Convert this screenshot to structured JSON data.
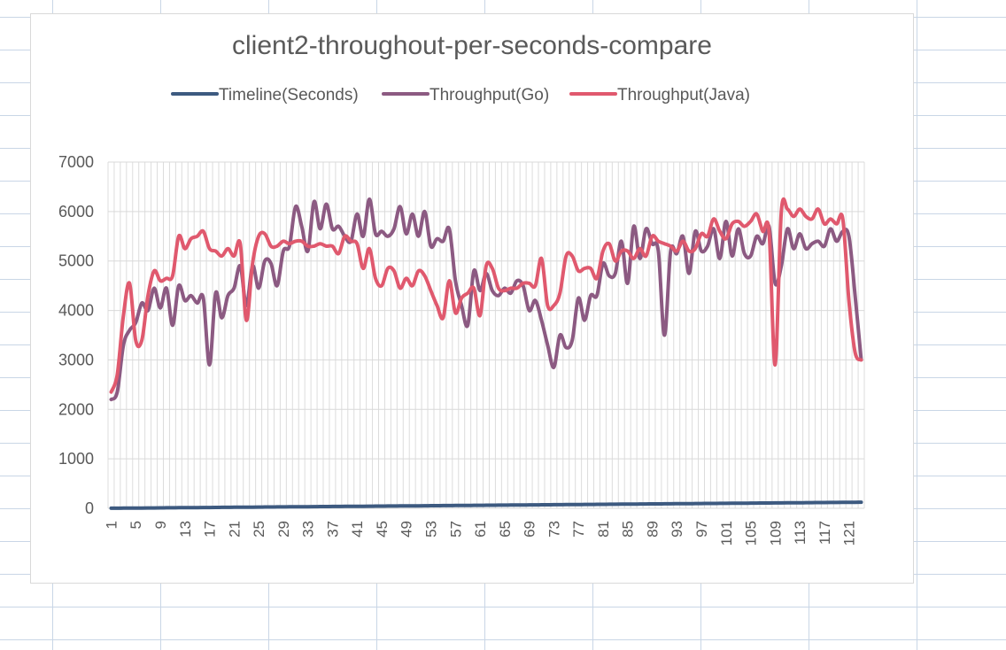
{
  "chart_data": {
    "type": "line",
    "title": "client2-throughout-per-seconds-compare",
    "xlabel": "",
    "ylabel": "",
    "ylim": [
      0,
      7000
    ],
    "yticks": [
      "0",
      "1000",
      "2000",
      "3000",
      "4000",
      "5000",
      "6000",
      "7000"
    ],
    "x": [
      1,
      2,
      3,
      4,
      5,
      6,
      7,
      8,
      9,
      10,
      11,
      12,
      13,
      14,
      15,
      16,
      17,
      18,
      19,
      20,
      21,
      22,
      23,
      24,
      25,
      26,
      27,
      28,
      29,
      30,
      31,
      32,
      33,
      34,
      35,
      36,
      37,
      38,
      39,
      40,
      41,
      42,
      43,
      44,
      45,
      46,
      47,
      48,
      49,
      50,
      51,
      52,
      53,
      54,
      55,
      56,
      57,
      58,
      59,
      60,
      61,
      62,
      63,
      64,
      65,
      66,
      67,
      68,
      69,
      70,
      71,
      72,
      73,
      74,
      75,
      76,
      77,
      78,
      79,
      80,
      81,
      82,
      83,
      84,
      85,
      86,
      87,
      88,
      89,
      90,
      91,
      92,
      93,
      94,
      95,
      96,
      97,
      98,
      99,
      100,
      101,
      102,
      103,
      104,
      105,
      106,
      107,
      108,
      109,
      110,
      111,
      112,
      113,
      114,
      115,
      116,
      117,
      118,
      119,
      120,
      121,
      122,
      123
    ],
    "xtick_labels": [
      "1",
      "5",
      "9",
      "13",
      "17",
      "21",
      "25",
      "29",
      "33",
      "37",
      "41",
      "45",
      "49",
      "53",
      "57",
      "61",
      "65",
      "69",
      "73",
      "77",
      "81",
      "85",
      "89",
      "93",
      "97",
      "101",
      "105",
      "109",
      "113",
      "117",
      "121"
    ],
    "grid": true,
    "legend_position": "top",
    "series": [
      {
        "name": "Timeline(Seconds)",
        "color": "#3d5a80",
        "values": [
          1,
          2,
          3,
          4,
          5,
          6,
          7,
          8,
          9,
          10,
          11,
          12,
          13,
          14,
          15,
          16,
          17,
          18,
          19,
          20,
          21,
          22,
          23,
          24,
          25,
          26,
          27,
          28,
          29,
          30,
          31,
          32,
          33,
          34,
          35,
          36,
          37,
          38,
          39,
          40,
          41,
          42,
          43,
          44,
          45,
          46,
          47,
          48,
          49,
          50,
          51,
          52,
          53,
          54,
          55,
          56,
          57,
          58,
          59,
          60,
          61,
          62,
          63,
          64,
          65,
          66,
          67,
          68,
          69,
          70,
          71,
          72,
          73,
          74,
          75,
          76,
          77,
          78,
          79,
          80,
          81,
          82,
          83,
          84,
          85,
          86,
          87,
          88,
          89,
          90,
          91,
          92,
          93,
          94,
          95,
          96,
          97,
          98,
          99,
          100,
          101,
          102,
          103,
          104,
          105,
          106,
          107,
          108,
          109,
          110,
          111,
          112,
          113,
          114,
          115,
          116,
          117,
          118,
          119,
          120,
          121,
          122,
          123
        ]
      },
      {
        "name": "Throughput(Go)",
        "color": "#8c5a82",
        "values": [
          2200,
          2350,
          3300,
          3600,
          3750,
          4150,
          4000,
          4450,
          4050,
          4450,
          3700,
          4500,
          4200,
          4300,
          4150,
          4250,
          2900,
          4350,
          3850,
          4300,
          4450,
          4900,
          4100,
          4900,
          4450,
          5000,
          4950,
          4500,
          5200,
          5300,
          6100,
          5700,
          5200,
          6200,
          5650,
          6150,
          5650,
          5700,
          5500,
          5400,
          5950,
          5500,
          6250,
          5550,
          5600,
          5500,
          5650,
          6100,
          5550,
          5950,
          5500,
          6000,
          5300,
          5450,
          5400,
          5650,
          4600,
          4100,
          3700,
          4800,
          4400,
          4750,
          4400,
          4300,
          4450,
          4350,
          4600,
          4500,
          4000,
          4200,
          3800,
          3300,
          2850,
          3500,
          3250,
          3400,
          4250,
          3800,
          4300,
          4300,
          4950,
          4700,
          4750,
          5400,
          4550,
          5700,
          5050,
          5650,
          5350,
          5200,
          3500,
          5200,
          5150,
          5500,
          4750,
          5600,
          5200,
          5300,
          5650,
          5050,
          5800,
          5100,
          5650,
          5150,
          5100,
          5500,
          5350,
          5700,
          4550,
          4900,
          5650,
          5250,
          5550,
          5250,
          5350,
          5400,
          5300,
          5650,
          5400,
          5600,
          5500,
          4300,
          3000
        ]
      },
      {
        "name": "Throughput(Java)",
        "color": "#e0596e",
        "values": [
          2350,
          2700,
          3900,
          4550,
          3400,
          3400,
          4300,
          4800,
          4600,
          4650,
          4700,
          5500,
          5250,
          5450,
          5500,
          5600,
          5250,
          5200,
          5100,
          5250,
          5100,
          5350,
          3800,
          4950,
          5500,
          5550,
          5300,
          5300,
          5400,
          5350,
          5400,
          5400,
          5300,
          5300,
          5350,
          5300,
          5300,
          5150,
          5500,
          5400,
          5350,
          4850,
          5250,
          4650,
          4500,
          4850,
          4800,
          4450,
          4650,
          4500,
          4800,
          4700,
          4400,
          4100,
          3850,
          4600,
          3950,
          4250,
          4350,
          4450,
          3900,
          4900,
          4850,
          4450,
          4400,
          4450,
          4450,
          4550,
          4550,
          4500,
          5050,
          4100,
          4100,
          4350,
          5100,
          5100,
          4800,
          4850,
          4850,
          4650,
          5200,
          5350,
          5000,
          5200,
          5200,
          5050,
          5250,
          5100,
          5500,
          5400,
          5350,
          5300,
          5200,
          5400,
          5200,
          5250,
          5550,
          5500,
          5850,
          5600,
          5450,
          5750,
          5800,
          5700,
          5800,
          5950,
          5600,
          5600,
          2900,
          6000,
          6050,
          5900,
          6050,
          5900,
          5850,
          6050,
          5750,
          5850,
          5750,
          5850,
          4200,
          3150,
          3000
        ]
      }
    ]
  }
}
